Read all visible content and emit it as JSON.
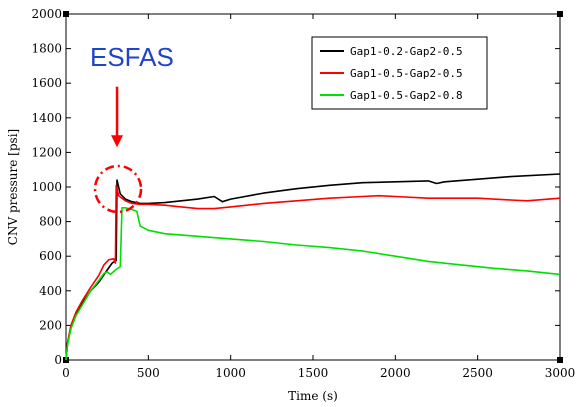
{
  "chart_data": {
    "type": "line",
    "title": "",
    "xlabel": "Time (s)",
    "ylabel": "CNV pressure [psi]",
    "xlim": [
      0,
      3000
    ],
    "ylim": [
      0,
      2000
    ],
    "xticks": [
      0,
      500,
      1000,
      1500,
      2000,
      2500,
      3000
    ],
    "yticks": [
      0,
      200,
      400,
      600,
      800,
      1000,
      1200,
      1400,
      1600,
      1800,
      2000
    ],
    "grid": false,
    "legend_position": "top-right",
    "series": [
      {
        "name": "Gap1-0.2-Gap2-0.5",
        "color": "#000000",
        "points": [
          [
            0,
            0
          ],
          [
            10,
            100
          ],
          [
            30,
            190
          ],
          [
            60,
            260
          ],
          [
            100,
            330
          ],
          [
            150,
            400
          ],
          [
            200,
            450
          ],
          [
            250,
            520
          ],
          [
            280,
            560
          ],
          [
            305,
            575
          ],
          [
            310,
            1040
          ],
          [
            330,
            960
          ],
          [
            360,
            930
          ],
          [
            400,
            915
          ],
          [
            450,
            905
          ],
          [
            500,
            905
          ],
          [
            600,
            910
          ],
          [
            700,
            920
          ],
          [
            800,
            930
          ],
          [
            900,
            945
          ],
          [
            950,
            915
          ],
          [
            1000,
            930
          ],
          [
            1200,
            965
          ],
          [
            1400,
            990
          ],
          [
            1600,
            1010
          ],
          [
            1800,
            1025
          ],
          [
            2000,
            1030
          ],
          [
            2200,
            1035
          ],
          [
            2250,
            1020
          ],
          [
            2300,
            1030
          ],
          [
            2500,
            1045
          ],
          [
            2700,
            1060
          ],
          [
            3000,
            1075
          ]
        ]
      },
      {
        "name": "Gap1-0.5-Gap2-0.5",
        "color": "#ff0000",
        "points": [
          [
            0,
            0
          ],
          [
            10,
            100
          ],
          [
            30,
            200
          ],
          [
            60,
            275
          ],
          [
            100,
            345
          ],
          [
            150,
            420
          ],
          [
            200,
            490
          ],
          [
            230,
            550
          ],
          [
            260,
            580
          ],
          [
            290,
            585
          ],
          [
            300,
            560
          ],
          [
            305,
            1010
          ],
          [
            320,
            950
          ],
          [
            360,
            920
          ],
          [
            400,
            905
          ],
          [
            450,
            900
          ],
          [
            500,
            900
          ],
          [
            600,
            895
          ],
          [
            700,
            885
          ],
          [
            800,
            875
          ],
          [
            900,
            875
          ],
          [
            1000,
            885
          ],
          [
            1200,
            905
          ],
          [
            1400,
            920
          ],
          [
            1600,
            935
          ],
          [
            1800,
            945
          ],
          [
            1900,
            950
          ],
          [
            2000,
            945
          ],
          [
            2200,
            935
          ],
          [
            2400,
            935
          ],
          [
            2500,
            935
          ],
          [
            2700,
            925
          ],
          [
            2800,
            920
          ],
          [
            3000,
            935
          ]
        ]
      },
      {
        "name": "Gap1-0.5-Gap2-0.8",
        "color": "#00e000",
        "points": [
          [
            0,
            0
          ],
          [
            10,
            90
          ],
          [
            30,
            180
          ],
          [
            60,
            255
          ],
          [
            100,
            320
          ],
          [
            150,
            400
          ],
          [
            200,
            460
          ],
          [
            230,
            500
          ],
          [
            250,
            510
          ],
          [
            270,
            495
          ],
          [
            300,
            520
          ],
          [
            330,
            540
          ],
          [
            340,
            880
          ],
          [
            360,
            880
          ],
          [
            400,
            870
          ],
          [
            430,
            860
          ],
          [
            450,
            775
          ],
          [
            500,
            750
          ],
          [
            600,
            730
          ],
          [
            800,
            715
          ],
          [
            1000,
            700
          ],
          [
            1200,
            685
          ],
          [
            1400,
            665
          ],
          [
            1600,
            650
          ],
          [
            1800,
            630
          ],
          [
            2000,
            600
          ],
          [
            2200,
            570
          ],
          [
            2400,
            550
          ],
          [
            2600,
            530
          ],
          [
            2800,
            515
          ],
          [
            3000,
            495
          ]
        ]
      }
    ],
    "annotations": [
      {
        "type": "text",
        "text": "ESFAS"
      },
      {
        "type": "arrow",
        "color": "#ff0000",
        "x": 310,
        "y_from": 1580,
        "y_to": 1230
      },
      {
        "type": "dash-dot-circle",
        "color": "#ff0000",
        "x": 310,
        "y": 1000
      }
    ]
  }
}
